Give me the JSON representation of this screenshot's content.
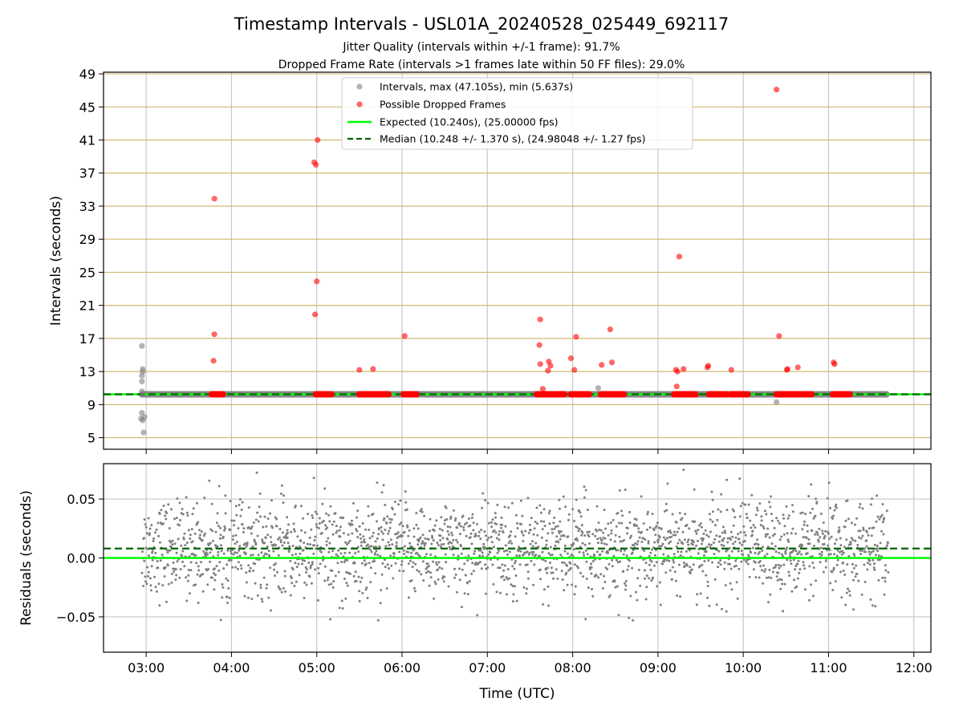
{
  "title": "Timestamp Intervals - USL01A_20240528_025449_692117",
  "subtitle_lines": [
    "Jitter Quality (intervals within +/-1 frame): 91.7%",
    "Dropped Frame Rate (intervals >1 frames late within 50 FF files): 29.0%"
  ],
  "colors": {
    "intervals": "#808080",
    "dropped": "#ff0000",
    "expected": "#00ff00",
    "median": "#006400",
    "hgrid_top": "#d4b870",
    "grid": "#c8c8c8"
  },
  "chart_data": [
    {
      "type": "scatter",
      "panel": "intervals",
      "ylabel": "Intervals (seconds)",
      "xlabel": "",
      "x_unit": "hours UTC",
      "xlim": [
        2.5,
        12.2
      ],
      "ylim": [
        3.6,
        49.2
      ],
      "yticks": [
        5,
        9,
        13,
        17,
        21,
        25,
        29,
        33,
        37,
        41,
        45,
        49
      ],
      "xticks": [
        3,
        4,
        5,
        6,
        7,
        8,
        9,
        10,
        11,
        12
      ],
      "xtick_labels": [
        "03:00",
        "04:00",
        "05:00",
        "06:00",
        "07:00",
        "08:00",
        "09:00",
        "10:00",
        "11:00",
        "12:00"
      ],
      "legend_position": "top-center",
      "legend": [
        "Intervals, max (47.105s), min (5.637s)",
        "Possible Dropped Frames",
        "Expected (10.240s), (25.00000 fps)",
        "Median (10.248 +/- 1.370 s), (24.98048 +/- 1.27 fps)"
      ],
      "expected_line": 10.24,
      "median_line": 10.248,
      "baseline_band": {
        "x_start": 2.95,
        "x_end": 11.68,
        "y": 10.24
      },
      "series": [
        {
          "name": "Intervals, max (47.105s), min (5.637s)",
          "points": [
            [
              2.95,
              16.1
            ],
            [
              2.96,
              13.3
            ],
            [
              2.96,
              13.0
            ],
            [
              2.95,
              12.5
            ],
            [
              2.95,
              11.8
            ],
            [
              2.95,
              10.6
            ],
            [
              2.96,
              10.3
            ],
            [
              2.95,
              8.0
            ],
            [
              2.94,
              7.3
            ],
            [
              2.96,
              7.1
            ],
            [
              2.98,
              7.5
            ],
            [
              2.97,
              5.64
            ],
            [
              8.3,
              11.0
            ],
            [
              10.39,
              9.3
            ]
          ]
        },
        {
          "name": "Possible Dropped Frames",
          "points": [
            [
              3.8,
              33.9
            ],
            [
              3.8,
              17.5
            ],
            [
              3.79,
              14.3
            ],
            [
              4.97,
              38.3
            ],
            [
              4.99,
              38.0
            ],
            [
              5.01,
              41.0
            ],
            [
              5.0,
              23.9
            ],
            [
              4.98,
              19.9
            ],
            [
              5.5,
              13.2
            ],
            [
              5.66,
              13.3
            ],
            [
              6.03,
              17.3
            ],
            [
              7.62,
              19.3
            ],
            [
              7.61,
              16.2
            ],
            [
              7.62,
              13.9
            ],
            [
              7.65,
              10.9
            ],
            [
              7.72,
              14.2
            ],
            [
              7.74,
              13.7
            ],
            [
              7.71,
              13.1
            ],
            [
              7.98,
              14.6
            ],
            [
              8.02,
              13.2
            ],
            [
              8.04,
              17.2
            ],
            [
              8.34,
              13.8
            ],
            [
              8.44,
              18.1
            ],
            [
              8.46,
              14.1
            ],
            [
              9.21,
              13.2
            ],
            [
              9.23,
              13.0
            ],
            [
              9.22,
              11.2
            ],
            [
              9.25,
              26.9
            ],
            [
              9.3,
              13.3
            ],
            [
              9.58,
              13.5
            ],
            [
              9.59,
              13.7
            ],
            [
              9.86,
              13.2
            ],
            [
              10.39,
              47.1
            ],
            [
              10.42,
              17.3
            ],
            [
              10.51,
              13.2
            ],
            [
              10.52,
              13.3
            ],
            [
              10.64,
              13.5
            ],
            [
              11.06,
              14.1
            ],
            [
              11.07,
              13.9
            ]
          ],
          "runs_at_expected": [
            [
              3.77,
              3.9
            ],
            [
              4.99,
              5.17
            ],
            [
              5.5,
              5.84
            ],
            [
              6.02,
              6.17
            ],
            [
              7.58,
              7.9
            ],
            [
              7.98,
              8.19
            ],
            [
              8.33,
              8.6
            ],
            [
              9.19,
              9.44
            ],
            [
              9.6,
              9.8
            ],
            [
              9.85,
              10.05
            ],
            [
              10.39,
              10.67
            ],
            [
              10.7,
              10.8
            ],
            [
              11.05,
              11.25
            ]
          ]
        }
      ]
    },
    {
      "type": "scatter",
      "panel": "residuals",
      "ylabel": "Residuals (seconds)",
      "xlabel": "Time (UTC)",
      "x_unit": "hours UTC",
      "xlim": [
        2.5,
        12.2
      ],
      "ylim": [
        -0.08,
        0.08
      ],
      "yticks": [
        -0.05,
        0.0,
        0.05
      ],
      "ytick_labels": [
        "−0.05",
        "0.00",
        "0.05"
      ],
      "xticks": [
        3,
        4,
        5,
        6,
        7,
        8,
        9,
        10,
        11,
        12
      ],
      "xtick_labels": [
        "03:00",
        "04:00",
        "05:00",
        "06:00",
        "07:00",
        "08:00",
        "09:00",
        "10:00",
        "11:00",
        "12:00"
      ],
      "expected_line": 0.0,
      "median_line": 0.008,
      "residual_distribution": {
        "x_start": 2.95,
        "x_end": 11.7,
        "count": 2200,
        "mean": 0.008,
        "std": 0.02,
        "clip": [
          -0.055,
          0.08
        ]
      }
    }
  ]
}
